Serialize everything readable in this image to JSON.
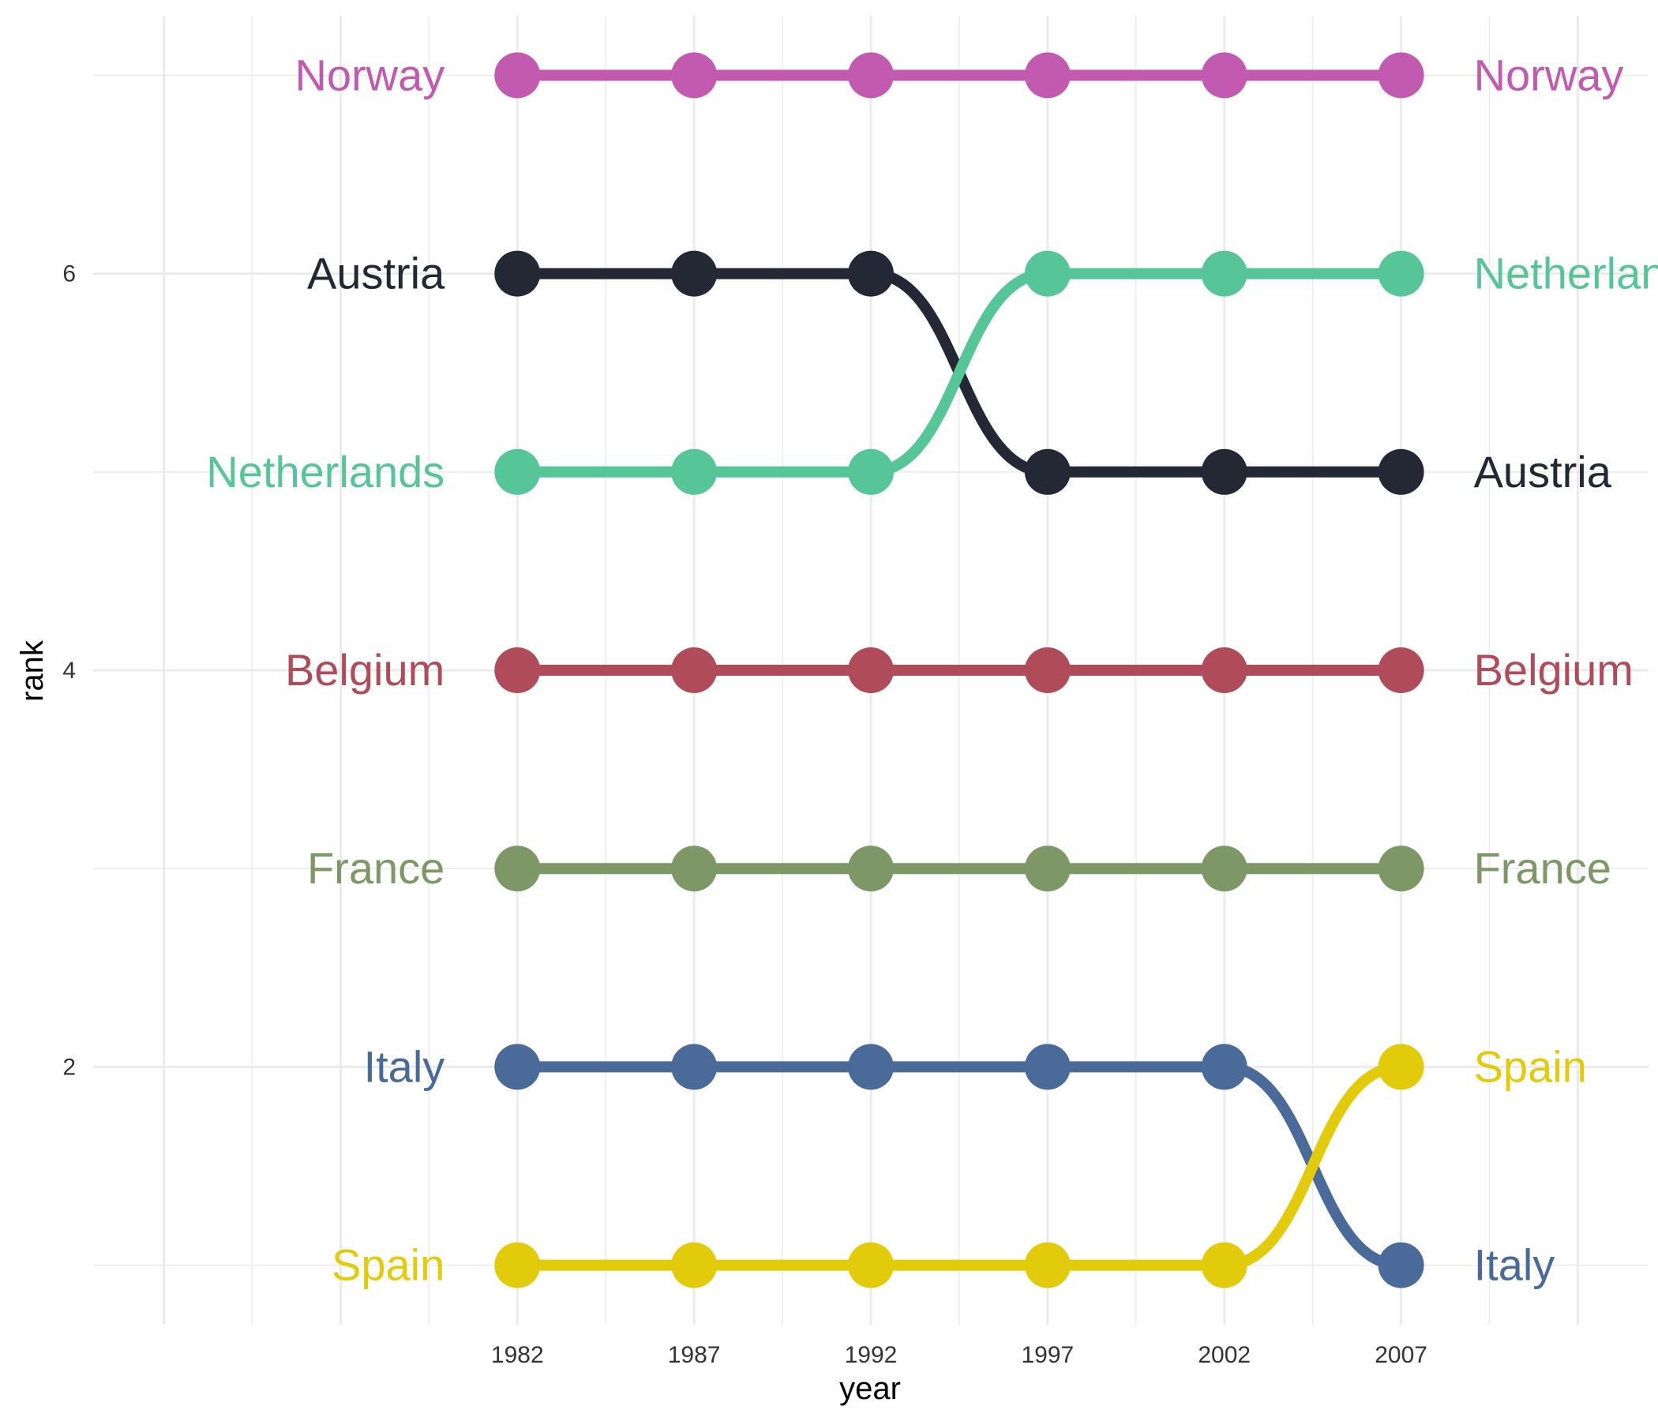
{
  "chart_data": {
    "type": "line",
    "subtype": "bump",
    "title": "",
    "xlabel": "year",
    "ylabel": "rank",
    "x": [
      1982,
      1987,
      1992,
      1997,
      2002,
      2007
    ],
    "x_ticks": [
      "1982",
      "1987",
      "1992",
      "1997",
      "2002",
      "2007"
    ],
    "y_ticks": [
      "2",
      "4",
      "6"
    ],
    "xlim": [
      1970,
      2014
    ],
    "ylim": [
      0.7,
      7.3
    ],
    "grid": true,
    "legend": "none",
    "series": [
      {
        "name": "Norway",
        "color": "#c25ab0",
        "values": [
          7,
          7,
          7,
          7,
          7,
          7
        ]
      },
      {
        "name": "Austria",
        "color": "#242834",
        "values": [
          6,
          6,
          6,
          5,
          5,
          5
        ]
      },
      {
        "name": "Netherlands",
        "color": "#56c598",
        "values": [
          5,
          5,
          5,
          6,
          6,
          6
        ]
      },
      {
        "name": "Belgium",
        "color": "#b04b59",
        "values": [
          4,
          4,
          4,
          4,
          4,
          4
        ]
      },
      {
        "name": "France",
        "color": "#7d9866",
        "values": [
          3,
          3,
          3,
          3,
          3,
          3
        ]
      },
      {
        "name": "Italy",
        "color": "#4a6a9a",
        "values": [
          2,
          2,
          2,
          2,
          2,
          1
        ]
      },
      {
        "name": "Spain",
        "color": "#e2cb0b",
        "values": [
          1,
          1,
          1,
          1,
          1,
          2
        ]
      }
    ]
  }
}
